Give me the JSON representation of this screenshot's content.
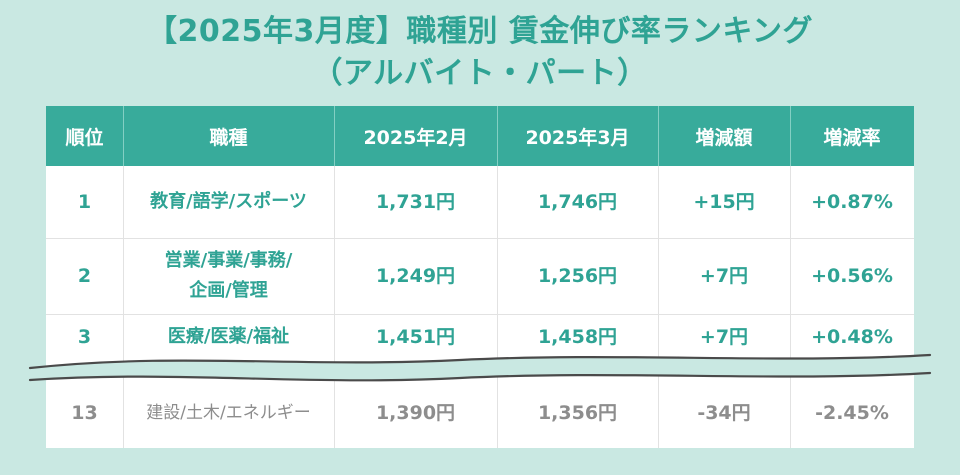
{
  "title": {
    "line1": "【2025年3月度】職種別 賃金伸び率ランキング",
    "line2": "（アルバイト・パート）"
  },
  "table": {
    "headers": [
      "順位",
      "職種",
      "2025年2月",
      "2025年3月",
      "増減額",
      "増減率"
    ],
    "rows": [
      {
        "rank": "1",
        "job": [
          "教育/語学/スポーツ"
        ],
        "feb": "1,731円",
        "mar": "1,746円",
        "diff": "+15円",
        "rate": "+0.87%"
      },
      {
        "rank": "2",
        "job": [
          "営業/事業/事務/",
          "企画/管理"
        ],
        "feb": "1,249円",
        "mar": "1,256円",
        "diff": "+7円",
        "rate": "+0.56%"
      },
      {
        "rank": "3",
        "job": [
          "医療/医薬/福祉"
        ],
        "feb": "1,451円",
        "mar": "1,458円",
        "diff": "+7円",
        "rate": "+0.48%"
      },
      {
        "rank": "13",
        "job": [
          "建設/土木/エネルギー"
        ],
        "feb": "1,390円",
        "mar": "1,356円",
        "diff": "-34円",
        "rate": "-2.45%"
      }
    ]
  },
  "colors": {
    "background": "#c9e8e2",
    "header": "#38ab9b",
    "accent_text": "#2fa394",
    "muted_text": "#8d8d8d"
  }
}
